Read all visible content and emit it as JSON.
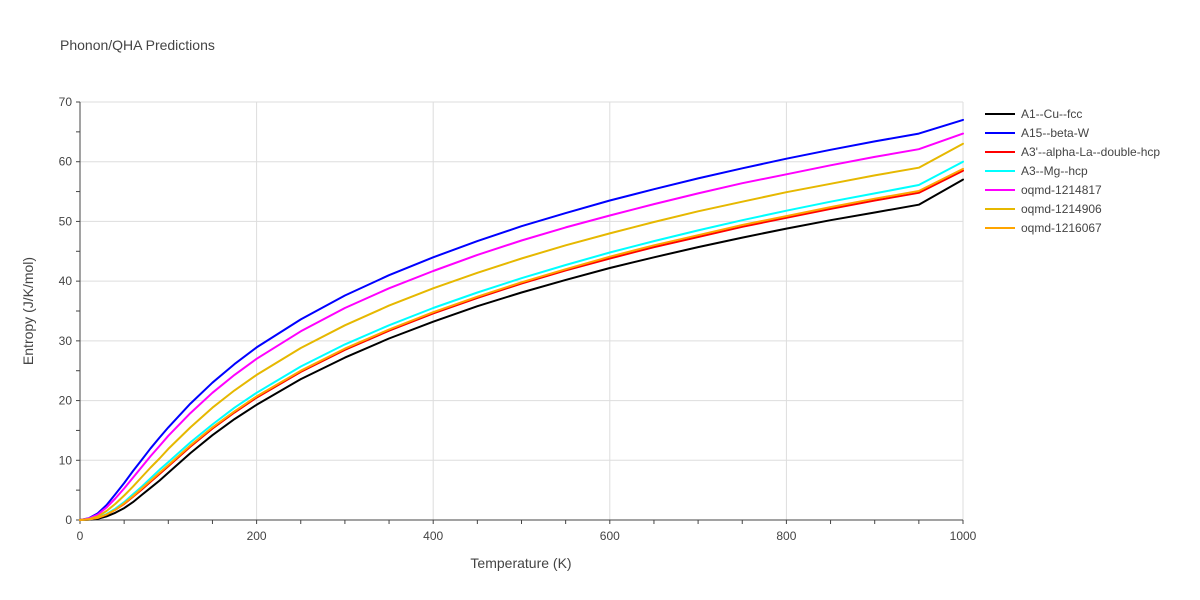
{
  "chart_data": {
    "type": "line",
    "title": "Phonon/QHA Predictions",
    "xlabel": "Temperature (K)",
    "ylabel": "Entropy (J/K/mol)",
    "xlim": [
      0,
      1000
    ],
    "ylim": [
      0,
      70
    ],
    "x_ticks": [
      0,
      200,
      400,
      600,
      800,
      1000
    ],
    "y_ticks": [
      0,
      10,
      20,
      30,
      40,
      50,
      60,
      70
    ],
    "grid": true,
    "legend_position": "right",
    "x": [
      0,
      10,
      20,
      30,
      40,
      50,
      60,
      70,
      80,
      90,
      100,
      125,
      150,
      175,
      200,
      250,
      300,
      350,
      400,
      450,
      500,
      550,
      600,
      650,
      700,
      750,
      800,
      850,
      900,
      950,
      1000
    ],
    "series": [
      {
        "name": "A1--Cu--fcc",
        "color": "#000000",
        "values": [
          0,
          0.05,
          0.2,
          0.6,
          1.2,
          2.0,
          3.0,
          4.2,
          5.4,
          6.6,
          7.9,
          11.2,
          14.2,
          16.9,
          19.3,
          23.6,
          27.2,
          30.4,
          33.2,
          35.8,
          38.1,
          40.2,
          42.2,
          44.0,
          45.7,
          47.3,
          48.8,
          50.2,
          51.5,
          52.8,
          57.0
        ]
      },
      {
        "name": "A15--beta-W",
        "color": "#0000ff",
        "values": [
          0,
          0.3,
          1.1,
          2.5,
          4.3,
          6.2,
          8.2,
          10.1,
          12.0,
          13.8,
          15.5,
          19.5,
          23.0,
          26.1,
          28.9,
          33.6,
          37.6,
          41.0,
          44.0,
          46.7,
          49.2,
          51.4,
          53.5,
          55.4,
          57.2,
          58.9,
          60.5,
          62.0,
          63.4,
          64.7,
          67.0
        ]
      },
      {
        "name": "A3'--alpha-La--double-hcp",
        "color": "#ff0000",
        "values": [
          0,
          0.1,
          0.35,
          0.9,
          1.7,
          2.7,
          3.9,
          5.1,
          6.4,
          7.7,
          9.0,
          12.3,
          15.3,
          18.0,
          20.5,
          24.8,
          28.5,
          31.7,
          34.6,
          37.2,
          39.6,
          41.8,
          43.8,
          45.7,
          47.4,
          49.1,
          50.6,
          52.1,
          53.5,
          54.8,
          58.5
        ]
      },
      {
        "name": "A3--Mg--hcp",
        "color": "#00ffff",
        "values": [
          0,
          0.1,
          0.4,
          1.0,
          1.9,
          3.0,
          4.3,
          5.6,
          7.0,
          8.4,
          9.7,
          13.0,
          16.0,
          18.8,
          21.3,
          25.7,
          29.4,
          32.6,
          35.5,
          38.1,
          40.5,
          42.7,
          44.8,
          46.7,
          48.5,
          50.2,
          51.8,
          53.3,
          54.7,
          56.1,
          60.0
        ]
      },
      {
        "name": "oqmd-1214817",
        "color": "#ff00ff",
        "values": [
          0,
          0.25,
          0.9,
          2.1,
          3.6,
          5.3,
          7.1,
          8.9,
          10.7,
          12.4,
          14.1,
          17.9,
          21.3,
          24.3,
          27.0,
          31.6,
          35.5,
          38.8,
          41.7,
          44.4,
          46.8,
          49.0,
          51.0,
          52.9,
          54.7,
          56.4,
          57.9,
          59.4,
          60.8,
          62.1,
          64.7
        ]
      },
      {
        "name": "oqmd-1214906",
        "color": "#e6b800",
        "values": [
          0,
          0.15,
          0.6,
          1.5,
          2.7,
          4.1,
          5.6,
          7.2,
          8.8,
          10.3,
          11.9,
          15.5,
          18.8,
          21.7,
          24.3,
          28.8,
          32.6,
          35.9,
          38.8,
          41.4,
          43.8,
          46.0,
          48.0,
          49.9,
          51.7,
          53.3,
          54.9,
          56.3,
          57.7,
          59.0,
          63.0
        ]
      },
      {
        "name": "oqmd-1216067",
        "color": "#ffa500",
        "values": [
          0,
          0.1,
          0.35,
          0.9,
          1.7,
          2.8,
          4.0,
          5.3,
          6.6,
          7.9,
          9.2,
          12.5,
          15.5,
          18.2,
          20.7,
          25.0,
          28.7,
          31.9,
          34.8,
          37.4,
          39.8,
          42.0,
          44.1,
          46.0,
          47.7,
          49.4,
          50.9,
          52.4,
          53.8,
          55.1,
          58.8
        ]
      }
    ]
  }
}
